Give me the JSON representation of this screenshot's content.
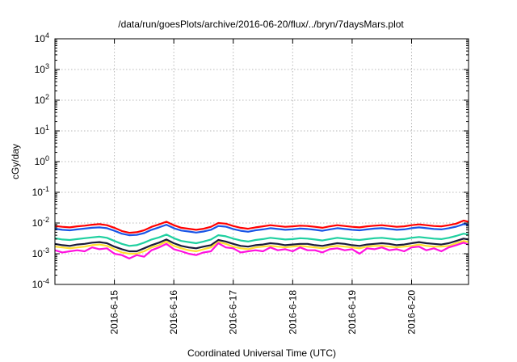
{
  "chart_data": {
    "type": "line",
    "title": "/data/run/goesPlots/archive/2016-06-20/flux/../bryn/7daysMars.plot",
    "xlabel": "Coordinated Universal Time (UTC)",
    "ylabel": "cGy/day",
    "yscale": "log",
    "ylim": [
      0.0001,
      10000
    ],
    "y_ticks": [
      {
        "base": "10",
        "exp": "-4"
      },
      {
        "base": "10",
        "exp": "-3"
      },
      {
        "base": "10",
        "exp": "-2"
      },
      {
        "base": "10",
        "exp": "-1"
      },
      {
        "base": "10",
        "exp": "0"
      },
      {
        "base": "10",
        "exp": "1"
      },
      {
        "base": "10",
        "exp": "2"
      },
      {
        "base": "10",
        "exp": "3"
      },
      {
        "base": "10",
        "exp": "4"
      }
    ],
    "xlim": [
      "2016-06-14 00:00",
      "2016-06-20 23:00"
    ],
    "x_ticks": [
      "2016-6-15",
      "2016-6-16",
      "2016-6-17",
      "2016-6-18",
      "2016-6-19",
      "2016-6-20"
    ],
    "grid": true,
    "legend": "none",
    "x": [
      "2016-06-14 00:00",
      "2016-06-14 03:00",
      "2016-06-14 06:00",
      "2016-06-14 09:00",
      "2016-06-14 12:00",
      "2016-06-14 15:00",
      "2016-06-14 18:00",
      "2016-06-14 21:00",
      "2016-06-15 00:00",
      "2016-06-15 03:00",
      "2016-06-15 06:00",
      "2016-06-15 09:00",
      "2016-06-15 12:00",
      "2016-06-15 15:00",
      "2016-06-15 18:00",
      "2016-06-15 21:00",
      "2016-06-16 00:00",
      "2016-06-16 03:00",
      "2016-06-16 06:00",
      "2016-06-16 09:00",
      "2016-06-16 12:00",
      "2016-06-16 15:00",
      "2016-06-16 18:00",
      "2016-06-16 21:00",
      "2016-06-17 00:00",
      "2016-06-17 03:00",
      "2016-06-17 06:00",
      "2016-06-17 09:00",
      "2016-06-17 12:00",
      "2016-06-17 15:00",
      "2016-06-17 18:00",
      "2016-06-17 21:00",
      "2016-06-18 00:00",
      "2016-06-18 03:00",
      "2016-06-18 06:00",
      "2016-06-18 09:00",
      "2016-06-18 12:00",
      "2016-06-18 15:00",
      "2016-06-18 18:00",
      "2016-06-18 21:00",
      "2016-06-19 00:00",
      "2016-06-19 03:00",
      "2016-06-19 06:00",
      "2016-06-19 09:00",
      "2016-06-19 12:00",
      "2016-06-19 15:00",
      "2016-06-19 18:00",
      "2016-06-19 21:00",
      "2016-06-20 00:00",
      "2016-06-20 03:00",
      "2016-06-20 06:00",
      "2016-06-20 09:00",
      "2016-06-20 12:00",
      "2016-06-20 15:00",
      "2016-06-20 18:00",
      "2016-06-20 21:00",
      "2016-06-20 23:00"
    ],
    "series": [
      {
        "color": "#ff0000",
        "values": [
          0.008,
          0.0075,
          0.0072,
          0.0078,
          0.0082,
          0.0088,
          0.0092,
          0.0085,
          0.007,
          0.0055,
          0.0048,
          0.005,
          0.0058,
          0.0075,
          0.009,
          0.011,
          0.0085,
          0.007,
          0.0065,
          0.006,
          0.0065,
          0.0075,
          0.01,
          0.0095,
          0.008,
          0.007,
          0.0065,
          0.0072,
          0.0078,
          0.0085,
          0.008,
          0.0075,
          0.0078,
          0.0082,
          0.008,
          0.0075,
          0.007,
          0.0078,
          0.0085,
          0.008,
          0.0075,
          0.0072,
          0.0078,
          0.0082,
          0.0085,
          0.008,
          0.0075,
          0.0078,
          0.0085,
          0.009,
          0.0085,
          0.008,
          0.0078,
          0.0085,
          0.0095,
          0.012,
          0.011
        ]
      },
      {
        "color": "#1a55e6",
        "values": [
          0.0065,
          0.006,
          0.0058,
          0.0062,
          0.0066,
          0.007,
          0.0072,
          0.0068,
          0.0056,
          0.0045,
          0.004,
          0.0041,
          0.0047,
          0.006,
          0.0072,
          0.0088,
          0.0068,
          0.0057,
          0.0053,
          0.0049,
          0.0053,
          0.006,
          0.008,
          0.0076,
          0.0064,
          0.0056,
          0.0052,
          0.0058,
          0.0062,
          0.0068,
          0.0064,
          0.006,
          0.0062,
          0.0066,
          0.0064,
          0.006,
          0.0056,
          0.0062,
          0.0068,
          0.0064,
          0.006,
          0.0058,
          0.0062,
          0.0066,
          0.0068,
          0.0064,
          0.006,
          0.0062,
          0.0068,
          0.0072,
          0.0068,
          0.0064,
          0.0062,
          0.0068,
          0.0076,
          0.0092,
          0.0088
        ]
      },
      {
        "color": "#1fd0a0",
        "values": [
          0.0032,
          0.0029,
          0.0028,
          0.003,
          0.0032,
          0.0034,
          0.0036,
          0.0033,
          0.0026,
          0.0021,
          0.0018,
          0.0019,
          0.0023,
          0.0029,
          0.0034,
          0.0042,
          0.0032,
          0.0026,
          0.0024,
          0.0022,
          0.0025,
          0.0029,
          0.004,
          0.0037,
          0.0031,
          0.0027,
          0.0025,
          0.0028,
          0.003,
          0.0033,
          0.0031,
          0.0029,
          0.003,
          0.0032,
          0.0031,
          0.0029,
          0.0027,
          0.003,
          0.0033,
          0.0031,
          0.0029,
          0.0028,
          0.003,
          0.0032,
          0.0033,
          0.0031,
          0.0029,
          0.003,
          0.0033,
          0.0035,
          0.0033,
          0.0031,
          0.003,
          0.0033,
          0.0038,
          0.0045,
          0.0042
        ]
      },
      {
        "color": "#1a1a3a",
        "values": [
          0.0021,
          0.0019,
          0.0018,
          0.002,
          0.0021,
          0.0023,
          0.0024,
          0.0022,
          0.0017,
          0.0014,
          0.0012,
          0.0012,
          0.0015,
          0.0019,
          0.0023,
          0.0029,
          0.0022,
          0.0018,
          0.0016,
          0.0015,
          0.0017,
          0.0019,
          0.0028,
          0.0025,
          0.0021,
          0.0018,
          0.0017,
          0.0019,
          0.002,
          0.0022,
          0.0021,
          0.0019,
          0.002,
          0.0021,
          0.0021,
          0.0019,
          0.0018,
          0.002,
          0.0022,
          0.0021,
          0.0019,
          0.0018,
          0.002,
          0.0021,
          0.0022,
          0.0021,
          0.0019,
          0.002,
          0.0022,
          0.0024,
          0.0022,
          0.0021,
          0.002,
          0.0022,
          0.0026,
          0.0031,
          0.0029
        ]
      },
      {
        "color": "#ffe030",
        "values": [
          0.0017,
          0.0016,
          0.0015,
          0.0016,
          0.0017,
          0.0019,
          0.002,
          0.0018,
          0.0014,
          0.0011,
          0.001,
          0.001,
          0.0012,
          0.0016,
          0.0019,
          0.0025,
          0.0018,
          0.0015,
          0.0013,
          0.0012,
          0.0014,
          0.0016,
          0.0024,
          0.0021,
          0.0017,
          0.0015,
          0.0014,
          0.0016,
          0.0017,
          0.0018,
          0.0017,
          0.0016,
          0.0017,
          0.0018,
          0.0017,
          0.0016,
          0.0015,
          0.0017,
          0.0018,
          0.0017,
          0.0016,
          0.0015,
          0.0017,
          0.0018,
          0.0018,
          0.0017,
          0.0016,
          0.0017,
          0.0018,
          0.002,
          0.0018,
          0.0017,
          0.0017,
          0.0018,
          0.0022,
          0.0026,
          0.0024
        ]
      },
      {
        "color": "#ff10e0",
        "values": [
          0.0013,
          0.0011,
          0.0012,
          0.0013,
          0.0012,
          0.0016,
          0.0014,
          0.0015,
          0.001,
          0.0009,
          0.0007,
          0.0009,
          0.0008,
          0.0013,
          0.0016,
          0.0021,
          0.0014,
          0.0012,
          0.001,
          0.0009,
          0.0011,
          0.0012,
          0.0022,
          0.0016,
          0.0015,
          0.0011,
          0.0012,
          0.0013,
          0.0012,
          0.0016,
          0.0013,
          0.0014,
          0.0012,
          0.0016,
          0.0013,
          0.0013,
          0.0011,
          0.0014,
          0.0015,
          0.0013,
          0.0014,
          0.001,
          0.0015,
          0.0014,
          0.0016,
          0.0013,
          0.0014,
          0.0012,
          0.0016,
          0.0017,
          0.0013,
          0.0015,
          0.0012,
          0.0016,
          0.0019,
          0.0023,
          0.002
        ]
      }
    ]
  }
}
